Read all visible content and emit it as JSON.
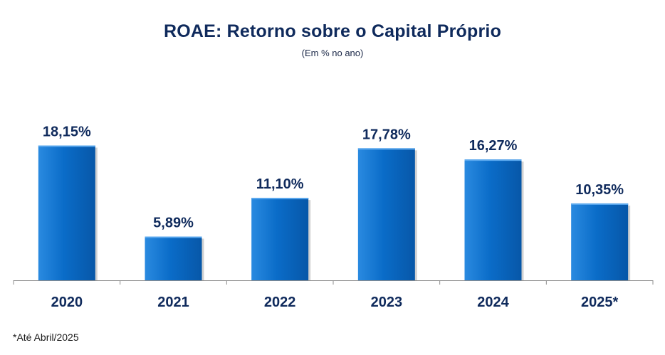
{
  "chart_data": {
    "type": "bar",
    "title": "ROAE: Retorno sobre o Capital Próprio",
    "subtitle": "(Em % no ano)",
    "categories": [
      "2020",
      "2021",
      "2022",
      "2023",
      "2024",
      "2025*"
    ],
    "values": [
      18.15,
      5.89,
      11.1,
      17.78,
      16.27,
      10.35
    ],
    "data_labels": [
      "18,15%",
      "5,89%",
      "11,10%",
      "17,78%",
      "16,27%",
      "10,35%"
    ],
    "xlabel": "",
    "ylabel": "",
    "ylim": [
      0,
      20
    ],
    "grid": false,
    "legend": "none",
    "footnote": "*Até Abril/2025"
  },
  "colors": {
    "bar_top": "#2a8ae0",
    "bar_mid": "#0a6cc8",
    "bar_bottom": "#0757a8",
    "title": "#0f2a5c",
    "axis": "#8c8c8c"
  }
}
